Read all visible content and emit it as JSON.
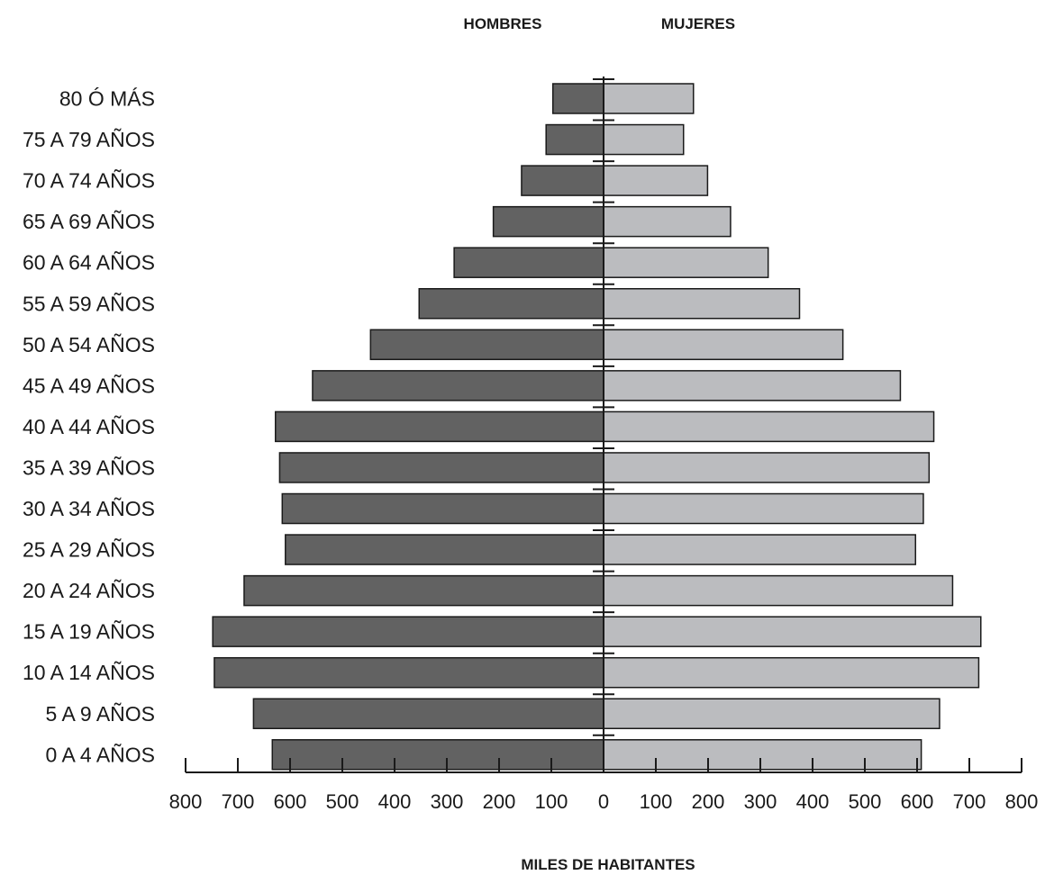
{
  "chart_data": {
    "type": "bar",
    "orientation": "horizontal",
    "subtype": "population-pyramid",
    "categories": [
      "80 Ó MÁS",
      "75 A 79 AÑOS",
      "70 A 74 AÑOS",
      "65 A 69 AÑOS",
      "60 A 64 AÑOS",
      "55 A 59 AÑOS",
      "50 A 54 AÑOS",
      "45 A 49 AÑOS",
      "40 A 44 AÑOS",
      "35 A 39 AÑOS",
      "30 A 34 AÑOS",
      "25 A 29 AÑOS",
      "20 A 24 AÑOS",
      "15 A 19 AÑOS",
      "10 A 14 AÑOS",
      "5 A 9 AÑOS",
      "0 A 4 AÑOS"
    ],
    "series": [
      {
        "name": "HOMBRES",
        "side": "left",
        "color": "#626262",
        "values": [
          97,
          110,
          157,
          211,
          286,
          353,
          446,
          557,
          628,
          620,
          615,
          609,
          688,
          748,
          745,
          670,
          634
        ]
      },
      {
        "name": "MUJERES",
        "side": "right",
        "color": "#bbbcbf",
        "values": [
          172,
          153,
          199,
          243,
          315,
          375,
          458,
          568,
          632,
          623,
          612,
          597,
          668,
          722,
          718,
          643,
          608
        ]
      }
    ],
    "xlabel": "MILES DE HABITANTES",
    "xlim": [
      -800,
      800
    ],
    "xticks": [
      -800,
      -700,
      -600,
      -500,
      -400,
      -300,
      -200,
      -100,
      0,
      100,
      200,
      300,
      400,
      500,
      600,
      700,
      800
    ],
    "xtick_labels": [
      "800",
      "700",
      "600",
      "500",
      "400",
      "300",
      "200",
      "100",
      "0",
      "100",
      "200",
      "300",
      "400",
      "500",
      "600",
      "700",
      "800"
    ],
    "grid": false,
    "legend": "top-center"
  }
}
